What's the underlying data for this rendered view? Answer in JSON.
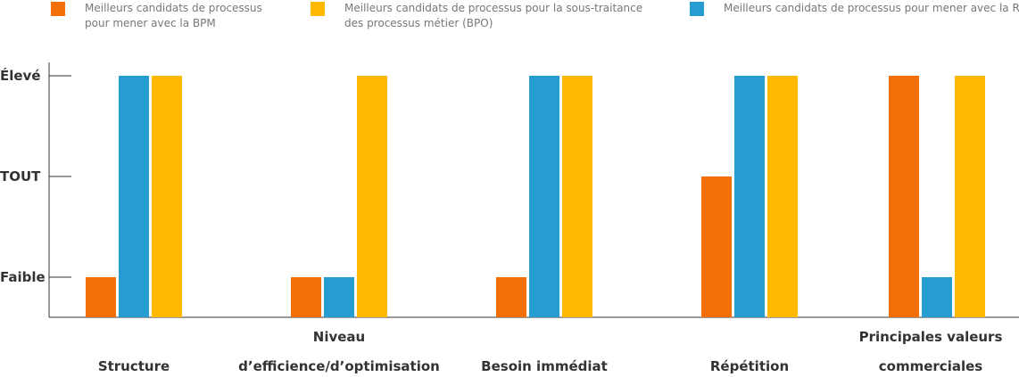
{
  "chart_data": {
    "type": "bar",
    "categories": [
      [
        "Structure"
      ],
      [
        "Niveau",
        "d’efficience/d’optimisation"
      ],
      [
        "Besoin immédiat"
      ],
      [
        "Répétition"
      ],
      [
        "Principales valeurs",
        "commerciales"
      ]
    ],
    "y_levels": [
      "Faible",
      "TOUT",
      "Élevé"
    ],
    "ylim": [
      0,
      3
    ],
    "series": [
      {
        "name": [
          "Meilleurs candidats de processus",
          "pour mener avec la BPM"
        ],
        "color": "#f47007",
        "values": [
          1,
          1,
          1,
          2,
          3
        ]
      },
      {
        "name": [
          "Meilleurs candidats de processus pour mener avec la RPA"
        ],
        "color": "#269cd2",
        "values": [
          3,
          1,
          3,
          3,
          1
        ]
      },
      {
        "name": [
          "Meilleurs candidats de processus pour la sous-traitance",
          "des processus métier (BPO)"
        ],
        "color": "#feb900",
        "values": [
          3,
          3,
          3,
          3,
          3
        ]
      }
    ],
    "legend_order": [
      0,
      2,
      1
    ],
    "grid": false,
    "legend_position": "top"
  }
}
